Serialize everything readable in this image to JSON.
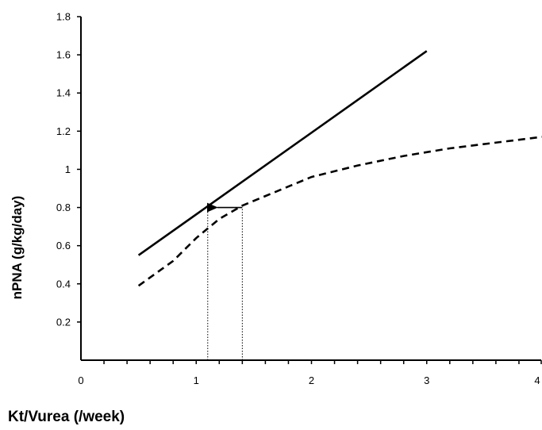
{
  "chart_data": {
    "type": "line",
    "xlabel": "Kt/Vurea (/week)",
    "ylabel": "nPNA (g/kg/day)",
    "xlim": [
      0,
      4
    ],
    "ylim": [
      0,
      1.8
    ],
    "x_ticks": [
      "0",
      "1",
      "2",
      "3",
      "4"
    ],
    "y_ticks": [
      "0.2",
      "0.4",
      "0.6",
      "0.8",
      "1",
      "1.2",
      "1.4",
      "1.6",
      "1.8"
    ],
    "x_tick_values": [
      0,
      1,
      2,
      3,
      4
    ],
    "y_tick_values": [
      0.2,
      0.4,
      0.6,
      0.8,
      1.0,
      1.2,
      1.4,
      1.6,
      1.8
    ],
    "grid": false,
    "series": [
      {
        "style": "solid",
        "color": "#000000",
        "x": [
          0.5,
          3.0
        ],
        "y": [
          0.55,
          1.62
        ]
      },
      {
        "style": "dashed",
        "color": "#000000",
        "x": [
          0.5,
          0.8,
          1.0,
          1.2,
          1.4,
          1.6,
          1.8,
          2.0,
          2.4,
          2.8,
          3.2,
          3.6,
          4.0
        ],
        "y": [
          0.39,
          0.52,
          0.64,
          0.74,
          0.81,
          0.86,
          0.91,
          0.96,
          1.02,
          1.07,
          1.11,
          1.14,
          1.17
        ]
      }
    ],
    "annotations": [
      {
        "type": "vertical-dotted-line",
        "x": 1.1,
        "y_from": 0,
        "y_to": 0.8
      },
      {
        "type": "vertical-dotted-line",
        "x": 1.4,
        "y_from": 0,
        "y_to": 0.8
      },
      {
        "type": "arrow",
        "from": [
          1.4,
          0.8
        ],
        "to": [
          1.1,
          0.8
        ]
      }
    ]
  }
}
